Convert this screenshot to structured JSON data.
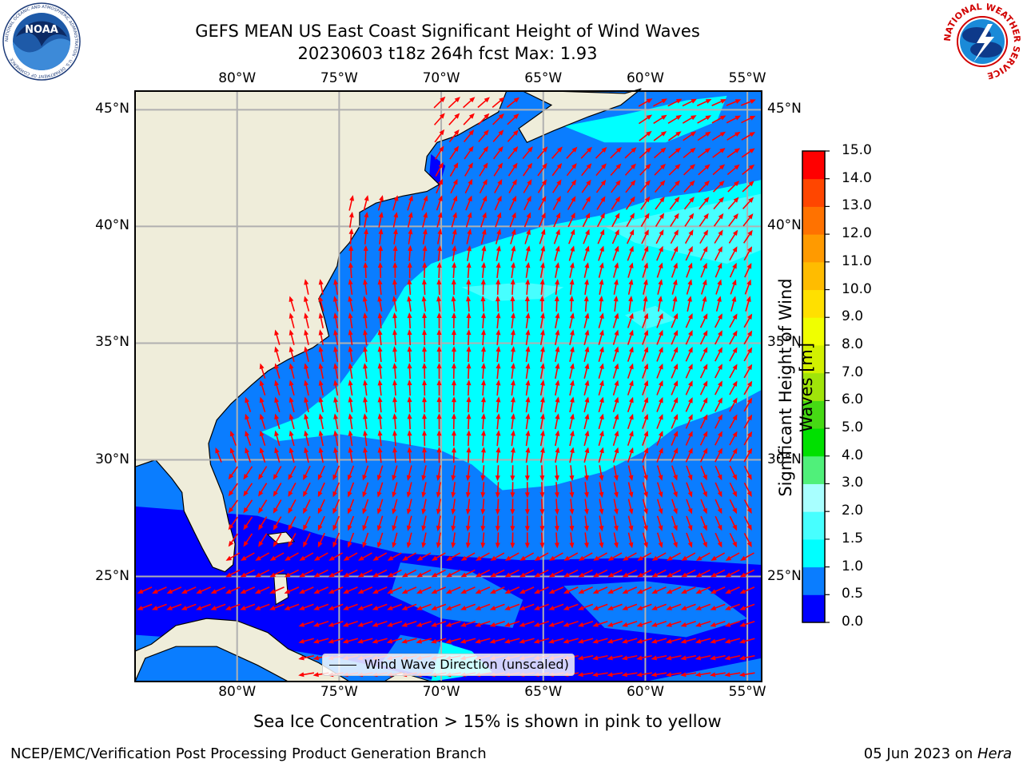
{
  "title": {
    "line1": "GEFS MEAN US East Coast Significant Height of Wind Waves",
    "line2": "20230603 t18z 264h fcst   Max: 1.93"
  },
  "map": {
    "lon_labels": [
      "80°W",
      "75°W",
      "70°W",
      "65°W",
      "60°W",
      "55°W"
    ],
    "lat_labels": [
      "45°N",
      "40°N",
      "35°N",
      "30°N",
      "25°N"
    ],
    "extent": {
      "lon_min": -85,
      "lon_max": -54.3,
      "lat_min": 20.5,
      "lat_max": 45.8
    },
    "legend_label": "Wind Wave Direction (unscaled)",
    "arrow_color": "#ff0000",
    "land_color": "#efedda",
    "grid": true
  },
  "colorbar": {
    "label": "Significant Height of Wind Waves [m]",
    "ticks": [
      "0.0",
      "0.5",
      "1.0",
      "1.5",
      "2.0",
      "3.0",
      "4.0",
      "5.0",
      "6.0",
      "7.0",
      "8.0",
      "9.0",
      "10.0",
      "11.0",
      "12.0",
      "13.0",
      "14.0",
      "15.0"
    ],
    "colors": [
      "#0000ff",
      "#0a7dff",
      "#00ffff",
      "#47ffff",
      "#a8ffff",
      "#50f07a",
      "#00e000",
      "#46d914",
      "#a0e40a",
      "#d2f000",
      "#f0ff00",
      "#ffe000",
      "#ffbc00",
      "#ff9a00",
      "#ff7200",
      "#ff4600",
      "#ff0000"
    ]
  },
  "note": "Sea Ice Concentration > 15% is shown in pink to yellow",
  "footer": {
    "left": "NCEP/EMC/Verification Post Processing Product Generation Branch",
    "right_date": "05 Jun 2023 on ",
    "right_host": "Hera"
  },
  "logos": {
    "left": {
      "text": "NOAA",
      "ring": "NATIONAL OCEANIC AND ATMOSPHERIC ADMINISTRATION · U.S. DEPARTMENT OF COMMERCE"
    },
    "right": {
      "ring": "NATIONAL WEATHER SERVICE"
    }
  }
}
